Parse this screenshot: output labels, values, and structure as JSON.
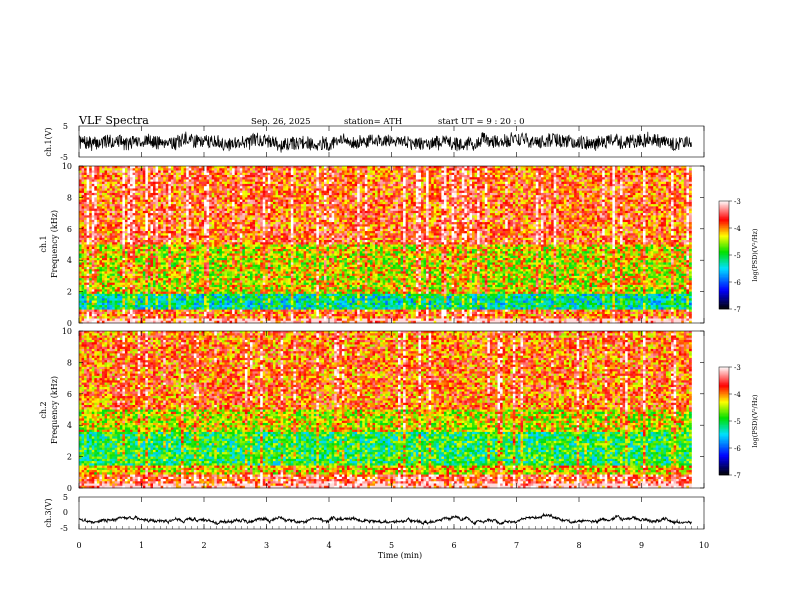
{
  "header": {
    "title": "VLF  Spectra",
    "date": "Sep. 26, 2025",
    "station": "station= ATH",
    "start": "start  UT  =   9  : 20 : 0"
  },
  "chart_data": [
    {
      "type": "line",
      "name": "ch1-waveform",
      "ylabel": "ch.1(V)",
      "ylim": [
        -5,
        5
      ],
      "y_ticks": [
        "5",
        "-5"
      ],
      "xlim": [
        0,
        10
      ],
      "x_end": 9.8,
      "seed": 7,
      "amplitude": 2.2
    },
    {
      "type": "heatmap",
      "name": "ch1-spectrogram",
      "ylabel_line1": "ch.1",
      "ylabel_line2": "Frequency (kHz)",
      "ylim": [
        0,
        10
      ],
      "xlim": [
        0,
        9.8
      ],
      "y_ticks": [
        "0",
        "2",
        "4",
        "6",
        "8",
        "10"
      ],
      "bands": [
        {
          "from": 0,
          "to": 0.3,
          "level": -3.7
        },
        {
          "from": 0.3,
          "to": 0.9,
          "level": -3.9
        },
        {
          "from": 0.9,
          "to": 1.8,
          "level": -5.3
        },
        {
          "from": 1.8,
          "to": 2.2,
          "level": -4.4
        },
        {
          "from": 2.2,
          "to": 5.0,
          "level": -4.4
        },
        {
          "from": 5.0,
          "to": 10.0,
          "level": -3.8
        }
      ]
    },
    {
      "type": "heatmap",
      "name": "ch2-spectrogram",
      "ylabel_line1": "ch.2",
      "ylabel_line2": "Frequency (kHz)",
      "ylim": [
        0,
        10
      ],
      "xlim": [
        0,
        9.8
      ],
      "y_ticks": [
        "0",
        "2",
        "4",
        "6",
        "8",
        "10"
      ],
      "bands": [
        {
          "from": 0,
          "to": 0.9,
          "level": -3.6
        },
        {
          "from": 0.9,
          "to": 1.5,
          "level": -4.3
        },
        {
          "from": 1.5,
          "to": 3.6,
          "level": -5.0
        },
        {
          "from": 3.6,
          "to": 5.0,
          "level": -4.4
        },
        {
          "from": 5.0,
          "to": 10.0,
          "level": -3.9
        }
      ]
    },
    {
      "type": "line",
      "name": "ch3-waveform",
      "ylabel": "ch.3(V)",
      "ylim": [
        -5,
        5
      ],
      "y_ticks": [
        "5",
        "0",
        "-5"
      ],
      "xlim": [
        0,
        10
      ],
      "x_end": 9.8,
      "seed": 3,
      "amplitude": 0.3,
      "offset": -2.0,
      "xlabel": "Time  (min)",
      "x_ticks": [
        "0",
        "1",
        "2",
        "3",
        "4",
        "5",
        "6",
        "7",
        "8",
        "9",
        "10"
      ]
    }
  ],
  "colorbars": [
    {
      "name": "ch1-colorbar",
      "ticks": [
        "-3",
        "-4",
        "-5",
        "-6",
        "-7"
      ],
      "range": [
        -7,
        -3
      ],
      "label": "log(PSD)(V²/Hz)"
    },
    {
      "name": "ch2-colorbar",
      "ticks": [
        "-3",
        "-4",
        "-5",
        "-6",
        "-7"
      ],
      "range": [
        -7,
        -3
      ],
      "label": "log(PSD)(V²/Hz)"
    }
  ],
  "colors": {
    "low": "#000000",
    "blue": "#0000ff",
    "cyan": "#00e0ff",
    "green": "#00e000",
    "yellow": "#ffff00",
    "red": "#ff0000",
    "high": "#ffffff"
  }
}
